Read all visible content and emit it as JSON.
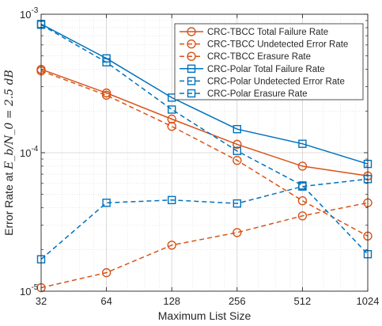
{
  "chart_data": {
    "type": "line",
    "x": [
      32,
      64,
      128,
      256,
      512,
      1024
    ],
    "xscale": "log2",
    "yscale": "log10",
    "xlim": [
      32,
      1024
    ],
    "ylim": [
      1e-05,
      0.001
    ],
    "x_tick_labels": [
      "32",
      "64",
      "128",
      "256",
      "512",
      "1024"
    ],
    "y_ticks": [
      {
        "value": 0.001,
        "base": "10",
        "exp": "-3"
      },
      {
        "value": 0.0001,
        "base": "10",
        "exp": "-4"
      },
      {
        "value": 1e-05,
        "base": "10",
        "exp": "-5"
      }
    ],
    "xlabel": "Maximum List Size",
    "ylabel_prefix": "Error Rate at ",
    "ylabel_math": "E_b/N_0 = 2.5 dB",
    "grid": true,
    "legend_position": "top-right",
    "series": [
      {
        "name": "CRC-TBCC Total Failure Rate",
        "color": "#D95319",
        "marker": "circle",
        "line": "solid",
        "values": [
          0.0004,
          0.00027,
          0.000175,
          0.000115,
          8e-05,
          6.8e-05
        ]
      },
      {
        "name": "CRC-TBCC Undetected Error Rate",
        "color": "#D95319",
        "marker": "circle",
        "line": "dashed",
        "values": [
          0.00039,
          0.00026,
          0.000155,
          8.8e-05,
          4.5e-05,
          2.5e-05
        ]
      },
      {
        "name": "CRC-TBCC Erasure Rate",
        "color": "#D95319",
        "marker": "circle",
        "line": "dashed",
        "values": [
          1.06e-05,
          1.36e-05,
          2.15e-05,
          2.65e-05,
          3.5e-05,
          4.35e-05
        ]
      },
      {
        "name": "CRC-Polar Total Failure Rate",
        "color": "#0072BD",
        "marker": "square",
        "line": "solid",
        "values": [
          0.00085,
          0.00048,
          0.00025,
          0.000148,
          0.000116,
          8.3e-05
        ]
      },
      {
        "name": "CRC-Polar Undetected Error Rate",
        "color": "#0072BD",
        "marker": "square",
        "line": "dashed",
        "values": [
          0.00084,
          0.00045,
          0.000205,
          0.000103,
          5.8e-05,
          1.85e-05
        ]
      },
      {
        "name": "CRC-Polar Erasure Rate",
        "color": "#0072BD",
        "marker": "square",
        "line": "dashed",
        "values": [
          1.7e-05,
          4.35e-05,
          4.55e-05,
          4.3e-05,
          5.7e-05,
          6.45e-05
        ]
      }
    ]
  }
}
